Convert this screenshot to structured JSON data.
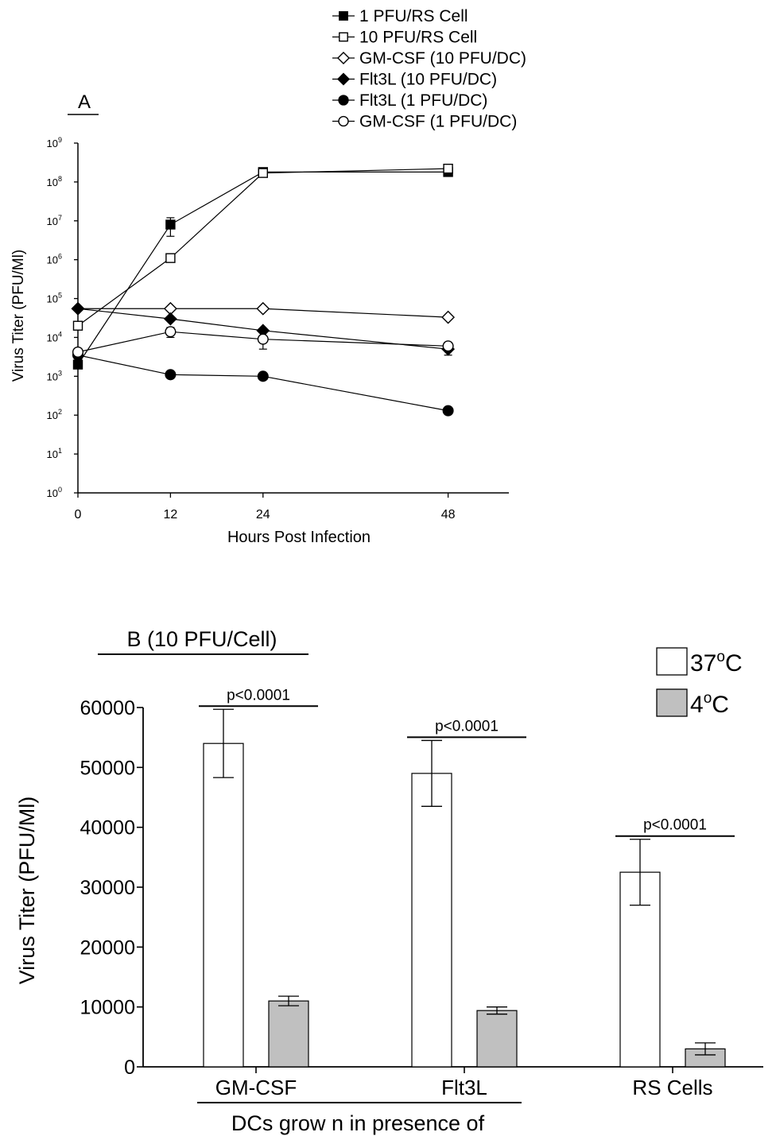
{
  "chart_data": [
    {
      "type": "line",
      "panel_label": "A",
      "xlabel": "Hours Post Infection",
      "ylabel": "Virus Titer (PFU/Ml)",
      "y_scale": "log",
      "ylim": [
        1,
        1000000000
      ],
      "xlim": [
        0,
        56
      ],
      "x_ticks": [
        0,
        12,
        24,
        48
      ],
      "y_tick_base": "10",
      "y_tick_exponents": [
        "0",
        "1",
        "2",
        "3",
        "4",
        "5",
        "6",
        "7",
        "8",
        "9"
      ],
      "x": [
        0,
        12,
        24,
        48
      ],
      "legend_position": "top",
      "series": [
        {
          "name": "1 PFU/RS Cell",
          "marker": "filled-square",
          "values": [
            2000,
            8000000,
            180000000,
            180000000
          ],
          "error": [
            0,
            4000000,
            0,
            0
          ]
        },
        {
          "name": "10 PFU/RS Cell",
          "marker": "open-square",
          "values": [
            20000,
            1100000,
            170000000,
            220000000
          ],
          "error": [
            0,
            0,
            0,
            0
          ]
        },
        {
          "name": "GM-CSF (10 PFU/DC)",
          "marker": "open-diamond",
          "values": [
            55000,
            55000,
            55000,
            33000
          ],
          "error": [
            0,
            0,
            0,
            0
          ]
        },
        {
          "name": "Flt3L (10 PFU/DC)",
          "marker": "filled-diamond",
          "values": [
            55000,
            30000,
            15000,
            5000
          ],
          "error": [
            0,
            0,
            0,
            1500
          ]
        },
        {
          "name": "Flt3L (1 PFU/DC)",
          "marker": "filled-circle",
          "values": [
            3500,
            1100,
            1000,
            130
          ],
          "error": [
            0,
            0,
            0,
            0
          ]
        },
        {
          "name": "GM-CSF (1 PFU/DC)",
          "marker": "open-circle",
          "values": [
            4200,
            14000,
            9000,
            6000
          ],
          "error": [
            0,
            4000,
            4000,
            1500
          ]
        }
      ]
    },
    {
      "type": "bar",
      "panel_label": "B (10 PFU/Cell)",
      "xlabel": "DCs grow n in presence of",
      "ylabel": "Virus Titer (PFU/Ml)",
      "ylim": [
        0,
        60000
      ],
      "y_ticks": [
        "0",
        "10000",
        "20000",
        "30000",
        "40000",
        "50000",
        "60000"
      ],
      "categories": [
        "GM-CSF",
        "Flt3L",
        "RS Cells"
      ],
      "legend_position": "top-right",
      "legend_unit_base": "o",
      "legend_unit_suffix": "C",
      "series": [
        {
          "name": "37",
          "color": "#ffffff",
          "values": [
            54000,
            49000,
            32500
          ],
          "error": [
            5700,
            5500,
            5500
          ]
        },
        {
          "name": "4",
          "color": "#c0c0c0",
          "values": [
            11000,
            9400,
            3000
          ],
          "error": [
            800,
            600,
            1000
          ]
        }
      ],
      "significance_labels": [
        "p<0.0001",
        "p<0.0001",
        "p<0.0001"
      ]
    }
  ]
}
